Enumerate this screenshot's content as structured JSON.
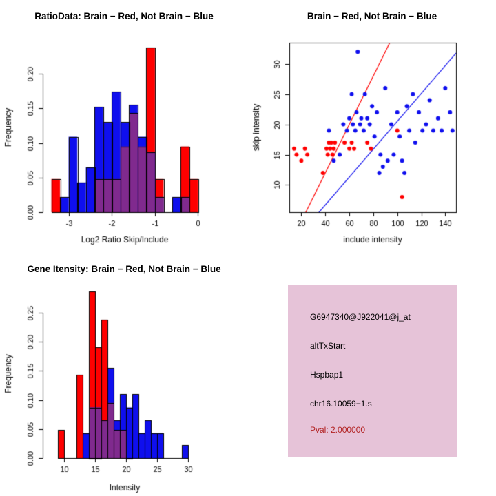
{
  "chart_data": [
    {
      "id": "ratio_hist",
      "type": "bar",
      "variant": "overlaid-histogram",
      "title": "RatioData: Brain − Red, Not Brain − Blue",
      "xlabel": "Log2 Ratio Skip/Include",
      "ylabel": "Frequency",
      "xlim": [
        -3.6,
        0.2
      ],
      "ylim": [
        0,
        0.245
      ],
      "xticks": [
        -3,
        -2,
        -1,
        0
      ],
      "yticks": [
        0,
        0.05,
        0.1,
        0.15,
        0.2
      ],
      "ytick_labels": [
        "0.00",
        "0.05",
        "0.10",
        "0.15",
        "0.20"
      ],
      "bin_width": 0.2,
      "overlap_color": "#802A8E",
      "series": [
        {
          "name": "Brain",
          "color": "#FF0000",
          "bins": [
            [
              -3.4,
              0.048
            ],
            [
              -2.4,
              0.048
            ],
            [
              -2.2,
              0.048
            ],
            [
              -2.0,
              0.048
            ],
            [
              -1.8,
              0.095
            ],
            [
              -1.6,
              0.143
            ],
            [
              -1.4,
              0.095
            ],
            [
              -1.2,
              0.238
            ],
            [
              -1.0,
              0.048
            ],
            [
              -0.4,
              0.095
            ],
            [
              -0.2,
              0.048
            ]
          ]
        },
        {
          "name": "Not Brain",
          "color": "#0F0FEE",
          "bins": [
            [
              -3.2,
              0.022
            ],
            [
              -3.0,
              0.109
            ],
            [
              -2.8,
              0.043
            ],
            [
              -2.6,
              0.065
            ],
            [
              -2.4,
              0.152
            ],
            [
              -2.2,
              0.13
            ],
            [
              -2.0,
              0.174
            ],
            [
              -1.8,
              0.13
            ],
            [
              -1.6,
              0.155
            ],
            [
              -1.4,
              0.109
            ],
            [
              -1.2,
              0.087
            ],
            [
              -1.0,
              0.022
            ],
            [
              -0.6,
              0.022
            ],
            [
              -0.4,
              0.022
            ]
          ]
        }
      ]
    },
    {
      "id": "scatter",
      "type": "scatter",
      "title": "Brain − Red, Not Brain − Blue",
      "xlabel": "include intensity",
      "ylabel": "skip intensity",
      "xlim": [
        10,
        149
      ],
      "ylim": [
        5.5,
        33.5
      ],
      "xticks": [
        20,
        40,
        60,
        80,
        100,
        120,
        140
      ],
      "yticks": [
        10,
        15,
        20,
        25,
        30
      ],
      "ytick_labels": [
        "10",
        "15",
        "20",
        "25",
        "30"
      ],
      "series": [
        {
          "name": "Brain",
          "color": "#FF0000",
          "points": [
            [
              14,
              16
            ],
            [
              16,
              15
            ],
            [
              20,
              14
            ],
            [
              23,
              16
            ],
            [
              25,
              15
            ],
            [
              38,
              12
            ],
            [
              41,
              16
            ],
            [
              42,
              15
            ],
            [
              43,
              17
            ],
            [
              44,
              16
            ],
            [
              45,
              17
            ],
            [
              46,
              15
            ],
            [
              47,
              16
            ],
            [
              48,
              17
            ],
            [
              56,
              17
            ],
            [
              60,
              16
            ],
            [
              62,
              17
            ],
            [
              64,
              16
            ],
            [
              75,
              17
            ],
            [
              78,
              16
            ],
            [
              100,
              19
            ],
            [
              104,
              8
            ]
          ]
        },
        {
          "name": "Not Brain",
          "color": "#0F0FEE",
          "points": [
            [
              43,
              19
            ],
            [
              47,
              14
            ],
            [
              52,
              15
            ],
            [
              55,
              20
            ],
            [
              58,
              19
            ],
            [
              60,
              21
            ],
            [
              62,
              25
            ],
            [
              63,
              20
            ],
            [
              65,
              19
            ],
            [
              66,
              22
            ],
            [
              67,
              32
            ],
            [
              69,
              20
            ],
            [
              70,
              21
            ],
            [
              72,
              19
            ],
            [
              73,
              25
            ],
            [
              75,
              21
            ],
            [
              77,
              20
            ],
            [
              79,
              23
            ],
            [
              81,
              18
            ],
            [
              83,
              22
            ],
            [
              85,
              12
            ],
            [
              86,
              15
            ],
            [
              88,
              13
            ],
            [
              90,
              26
            ],
            [
              92,
              14
            ],
            [
              95,
              20
            ],
            [
              97,
              15
            ],
            [
              100,
              22
            ],
            [
              102,
              18
            ],
            [
              104,
              14
            ],
            [
              106,
              12
            ],
            [
              108,
              23
            ],
            [
              110,
              19
            ],
            [
              113,
              25
            ],
            [
              115,
              17
            ],
            [
              118,
              22
            ],
            [
              121,
              19
            ],
            [
              124,
              20
            ],
            [
              127,
              24
            ],
            [
              130,
              19
            ],
            [
              134,
              21
            ],
            [
              137,
              19
            ],
            [
              140,
              26
            ],
            [
              144,
              22
            ],
            [
              146,
              19
            ]
          ]
        }
      ],
      "lines": [
        {
          "name": "brain-fit-line",
          "color": "#FF0000",
          "slope": 0.4,
          "intercept": -4
        },
        {
          "name": "notbrain-fit-line",
          "color": "#0F0FEE",
          "slope": 0.23,
          "intercept": -2.5
        }
      ]
    },
    {
      "id": "gene_hist",
      "type": "bar",
      "variant": "overlaid-histogram",
      "title": "Gene Itensity: Brain − Red, Not Brain − Blue",
      "xlabel": "Intensity",
      "ylabel": "Frequency",
      "xlim": [
        6.5,
        33
      ],
      "ylim": [
        0,
        0.29
      ],
      "xticks": [
        10,
        15,
        20,
        25,
        30
      ],
      "yticks": [
        0,
        0.05,
        0.1,
        0.15,
        0.2,
        0.25
      ],
      "ytick_labels": [
        "0.00",
        "0.05",
        "0.10",
        "0.15",
        "0.20",
        "0.25"
      ],
      "bin_width": 1,
      "overlap_color": "#802A8E",
      "series": [
        {
          "name": "Brain",
          "color": "#FF0000",
          "bins": [
            [
              9,
              0.048
            ],
            [
              12,
              0.143
            ],
            [
              14,
              0.286
            ],
            [
              15,
              0.19
            ],
            [
              16,
              0.238
            ],
            [
              17,
              0.095
            ],
            [
              18,
              0.048
            ],
            [
              19,
              0.048
            ]
          ]
        },
        {
          "name": "Not Brain",
          "color": "#0F0FEE",
          "bins": [
            [
              13,
              0.043
            ],
            [
              14,
              0.087
            ],
            [
              15,
              0.087
            ],
            [
              16,
              0.065
            ],
            [
              17,
              0.155
            ],
            [
              18,
              0.065
            ],
            [
              19,
              0.11
            ],
            [
              20,
              0.087
            ],
            [
              21,
              0.11
            ],
            [
              22,
              0.043
            ],
            [
              23,
              0.065
            ],
            [
              24,
              0.043
            ],
            [
              25,
              0.043
            ],
            [
              29,
              0.022
            ]
          ]
        }
      ]
    },
    {
      "id": "info_box",
      "type": "table",
      "background": "#E6C3D8",
      "lines": [
        {
          "text": "G6947340@J922041@j_at",
          "color": "#000000"
        },
        {
          "text": "altTxStart",
          "color": "#000000"
        },
        {
          "text": "Hspbap1",
          "color": "#000000"
        },
        {
          "text": "chr16.10059−1.s",
          "color": "#000000"
        },
        {
          "text": "Pval: 2.000000",
          "color": "#B22222"
        }
      ]
    }
  ]
}
